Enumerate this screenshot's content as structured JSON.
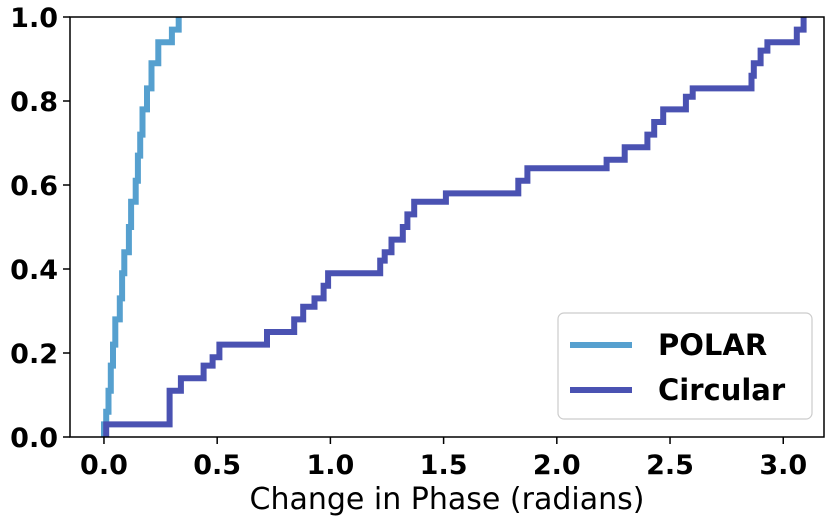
{
  "chart_data": {
    "type": "line",
    "xlabel": "Change in Phase (radians)",
    "ylabel": "",
    "xlim": [
      -0.15,
      3.18
    ],
    "ylim": [
      0.0,
      1.0
    ],
    "x_ticks": [
      0.0,
      0.5,
      1.0,
      1.5,
      2.0,
      2.5,
      3.0
    ],
    "x_tick_labels": [
      "0.0",
      "0.5",
      "1.0",
      "1.5",
      "2.0",
      "2.5",
      "3.0"
    ],
    "y_ticks": [
      0.0,
      0.2,
      0.4,
      0.6,
      0.8,
      1.0
    ],
    "y_tick_labels": [
      "0.0",
      "0.2",
      "0.4",
      "0.6",
      "0.8",
      "1.0"
    ],
    "grid": false,
    "legend_position": "bottom-right",
    "step": true,
    "series": [
      {
        "name": "POLAR",
        "color": "#56a0cf",
        "points": [
          [
            0.0,
            0.0
          ],
          [
            0.0,
            0.03
          ],
          [
            0.01,
            0.06
          ],
          [
            0.02,
            0.11
          ],
          [
            0.03,
            0.17
          ],
          [
            0.04,
            0.22
          ],
          [
            0.05,
            0.28
          ],
          [
            0.07,
            0.33
          ],
          [
            0.08,
            0.39
          ],
          [
            0.09,
            0.44
          ],
          [
            0.11,
            0.5
          ],
          [
            0.12,
            0.56
          ],
          [
            0.14,
            0.61
          ],
          [
            0.15,
            0.67
          ],
          [
            0.16,
            0.72
          ],
          [
            0.17,
            0.78
          ],
          [
            0.19,
            0.83
          ],
          [
            0.21,
            0.89
          ],
          [
            0.24,
            0.94
          ],
          [
            0.3,
            0.97
          ],
          [
            0.33,
            1.0
          ]
        ]
      },
      {
        "name": "Circular",
        "color": "#4a52b2",
        "points": [
          [
            0.01,
            0.0
          ],
          [
            0.01,
            0.03
          ],
          [
            0.28,
            0.03
          ],
          [
            0.29,
            0.11
          ],
          [
            0.34,
            0.14
          ],
          [
            0.44,
            0.17
          ],
          [
            0.48,
            0.19
          ],
          [
            0.51,
            0.22
          ],
          [
            0.72,
            0.25
          ],
          [
            0.84,
            0.28
          ],
          [
            0.88,
            0.31
          ],
          [
            0.93,
            0.33
          ],
          [
            0.97,
            0.36
          ],
          [
            0.99,
            0.39
          ],
          [
            1.22,
            0.42
          ],
          [
            1.24,
            0.44
          ],
          [
            1.27,
            0.47
          ],
          [
            1.32,
            0.5
          ],
          [
            1.34,
            0.53
          ],
          [
            1.37,
            0.56
          ],
          [
            1.51,
            0.58
          ],
          [
            1.83,
            0.61
          ],
          [
            1.87,
            0.64
          ],
          [
            2.22,
            0.66
          ],
          [
            2.3,
            0.69
          ],
          [
            2.4,
            0.72
          ],
          [
            2.43,
            0.75
          ],
          [
            2.47,
            0.78
          ],
          [
            2.57,
            0.81
          ],
          [
            2.6,
            0.83
          ],
          [
            2.86,
            0.86
          ],
          [
            2.87,
            0.89
          ],
          [
            2.9,
            0.92
          ],
          [
            2.93,
            0.94
          ],
          [
            3.06,
            0.97
          ],
          [
            3.09,
            1.0
          ]
        ]
      }
    ]
  }
}
